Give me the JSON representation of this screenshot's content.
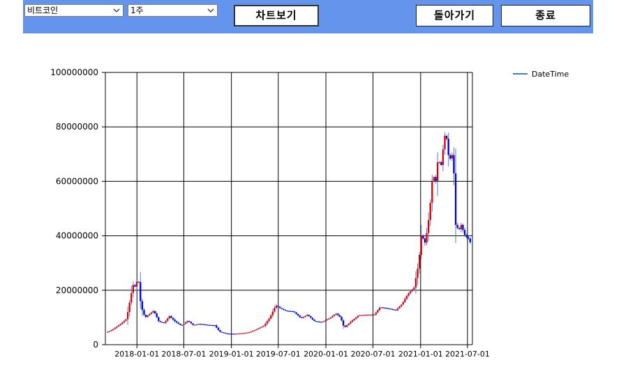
{
  "toolbar": {
    "coin_select": {
      "value": "비트코인"
    },
    "period_select": {
      "value": "1주"
    },
    "show_chart_label": "차트보기",
    "back_label": "돌아가기",
    "exit_label": "종료"
  },
  "colors": {
    "toolbar_bg": "#6495ed",
    "up": "#e00000",
    "down": "#0000d0",
    "wick": "#4b7bd6",
    "legend_line": "#3e7ad8"
  },
  "chart_data": {
    "type": "candlestick",
    "legend": [
      {
        "name": "DateTime"
      }
    ],
    "ylim": [
      0,
      100000000
    ],
    "y_ticks": [
      0,
      20000000,
      40000000,
      60000000,
      80000000,
      100000000
    ],
    "y_tick_labels": [
      "0",
      "20000000",
      "40000000",
      "60000000",
      "80000000",
      "100000000"
    ],
    "x_range": [
      "2017-09-01",
      "2021-07-20"
    ],
    "x_ticks": [
      "2018-01-01",
      "2018-07-01",
      "2019-01-01",
      "2019-07-01",
      "2020-01-01",
      "2020-07-01",
      "2021-01-01",
      "2021-07-01"
    ],
    "x_tick_labels": [
      "2018-01-01",
      "2018-07-01",
      "2019-01-01",
      "2019-07-01",
      "2020-01-01",
      "2020-07-01",
      "2021-01-01",
      "2021-07-01"
    ],
    "grid": true,
    "legend_position": "top-right",
    "points": [
      [
        "2017-09-07",
        4500000
      ],
      [
        "2017-09-25",
        5200000
      ],
      [
        "2017-10-15",
        6400000
      ],
      [
        "2017-11-05",
        7800000
      ],
      [
        "2017-11-25",
        9500000
      ],
      [
        "2017-12-08",
        16000000
      ],
      [
        "2017-12-20",
        22000000
      ],
      [
        "2018-01-01",
        21000000
      ],
      [
        "2018-01-08",
        26000000
      ],
      [
        "2018-01-20",
        14000000
      ],
      [
        "2018-02-05",
        10000000
      ],
      [
        "2018-02-25",
        11500000
      ],
      [
        "2018-03-10",
        12500000
      ],
      [
        "2018-03-30",
        8500000
      ],
      [
        "2018-04-20",
        8000000
      ],
      [
        "2018-05-10",
        10500000
      ],
      [
        "2018-06-01",
        8500000
      ],
      [
        "2018-06-25",
        7000000
      ],
      [
        "2018-07-20",
        8800000
      ],
      [
        "2018-08-10",
        7200000
      ],
      [
        "2018-09-01",
        7700000
      ],
      [
        "2018-10-01",
        7300000
      ],
      [
        "2018-11-01",
        7100000
      ],
      [
        "2018-11-20",
        4800000
      ],
      [
        "2018-12-15",
        4100000
      ],
      [
        "2019-01-15",
        4000000
      ],
      [
        "2019-02-15",
        4200000
      ],
      [
        "2019-03-15",
        4600000
      ],
      [
        "2019-04-10",
        5600000
      ],
      [
        "2019-05-10",
        7000000
      ],
      [
        "2019-06-01",
        9800000
      ],
      [
        "2019-06-25",
        14500000
      ],
      [
        "2019-07-10",
        13500000
      ],
      [
        "2019-08-01",
        12500000
      ],
      [
        "2019-09-01",
        12200000
      ],
      [
        "2019-10-01",
        9700000
      ],
      [
        "2019-10-25",
        11000000
      ],
      [
        "2019-11-20",
        8700000
      ],
      [
        "2019-12-20",
        8300000
      ],
      [
        "2020-01-20",
        9800000
      ],
      [
        "2020-02-12",
        11500000
      ],
      [
        "2020-03-01",
        10000000
      ],
      [
        "2020-03-15",
        6200000
      ],
      [
        "2020-04-10",
        8500000
      ],
      [
        "2020-05-10",
        10800000
      ],
      [
        "2020-06-10",
        11000000
      ],
      [
        "2020-07-10",
        11100000
      ],
      [
        "2020-08-01",
        13800000
      ],
      [
        "2020-09-01",
        13300000
      ],
      [
        "2020-10-01",
        12700000
      ],
      [
        "2020-10-25",
        15000000
      ],
      [
        "2020-11-15",
        18500000
      ],
      [
        "2020-12-10",
        21000000
      ],
      [
        "2020-12-28",
        30000000
      ],
      [
        "2021-01-08",
        41000000
      ],
      [
        "2021-01-20",
        37000000
      ],
      [
        "2021-02-01",
        43000000
      ],
      [
        "2021-02-12",
        53000000
      ],
      [
        "2021-02-22",
        65000000
      ],
      [
        "2021-03-01",
        57000000
      ],
      [
        "2021-03-12",
        68000000
      ],
      [
        "2021-03-25",
        66000000
      ],
      [
        "2021-04-05",
        75000000
      ],
      [
        "2021-04-12",
        79000000
      ],
      [
        "2021-04-20",
        70000000
      ],
      [
        "2021-05-01",
        68000000
      ],
      [
        "2021-05-10",
        71000000
      ],
      [
        "2021-05-20",
        44000000
      ],
      [
        "2021-06-01",
        42000000
      ],
      [
        "2021-06-10",
        44000000
      ],
      [
        "2021-06-25",
        40000000
      ],
      [
        "2021-07-08",
        39000000
      ],
      [
        "2021-07-18",
        37000000
      ]
    ]
  }
}
